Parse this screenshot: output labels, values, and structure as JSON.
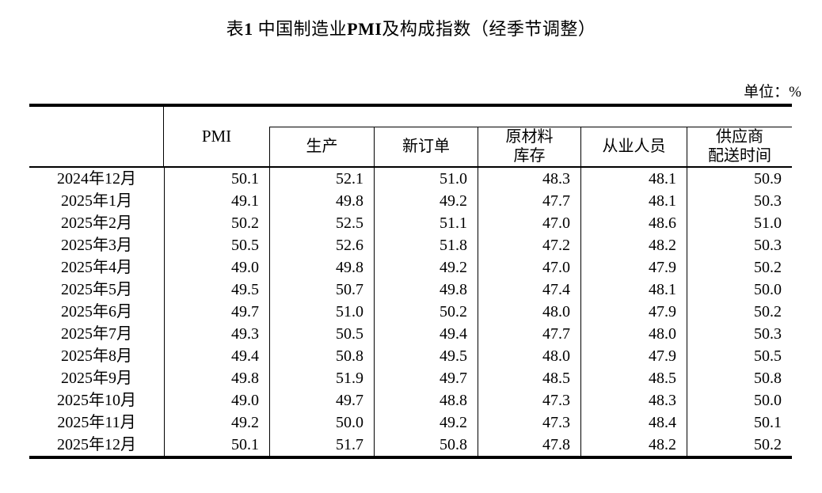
{
  "page": {
    "title_text": "表1 中国制造业PMI及构成指数（经季节调整）",
    "title_runs": [
      {
        "text": "表",
        "bold": false
      },
      {
        "text": "1",
        "bold": true
      },
      {
        "text": " 中国制造业",
        "bold": false
      },
      {
        "text": "PMI",
        "bold": true
      },
      {
        "text": "及构成指数（经季节调整）",
        "bold": false
      }
    ],
    "unit_label": "单位：%"
  },
  "table": {
    "columns": {
      "corner": "",
      "pmi": "PMI",
      "sub": [
        "生产",
        "新订单",
        "原材料\n库存",
        "从业人员",
        "供应商\n配送时间"
      ]
    },
    "rows": [
      {
        "period": "2024年12月",
        "values": [
          "50.1",
          "52.1",
          "51.0",
          "48.3",
          "48.1",
          "50.9"
        ]
      },
      {
        "period": "2025年1月",
        "values": [
          "49.1",
          "49.8",
          "49.2",
          "47.7",
          "48.1",
          "50.3"
        ]
      },
      {
        "period": "2025年2月",
        "values": [
          "50.2",
          "52.5",
          "51.1",
          "47.0",
          "48.6",
          "51.0"
        ]
      },
      {
        "period": "2025年3月",
        "values": [
          "50.5",
          "52.6",
          "51.8",
          "47.2",
          "48.2",
          "50.3"
        ]
      },
      {
        "period": "2025年4月",
        "values": [
          "49.0",
          "49.8",
          "49.2",
          "47.0",
          "47.9",
          "50.2"
        ]
      },
      {
        "period": "2025年5月",
        "values": [
          "49.5",
          "50.7",
          "49.8",
          "47.4",
          "48.1",
          "50.0"
        ]
      },
      {
        "period": "2025年6月",
        "values": [
          "49.7",
          "51.0",
          "50.2",
          "48.0",
          "47.9",
          "50.2"
        ]
      },
      {
        "period": "2025年7月",
        "values": [
          "49.3",
          "50.5",
          "49.4",
          "47.7",
          "48.0",
          "50.3"
        ]
      },
      {
        "period": "2025年8月",
        "values": [
          "49.4",
          "50.8",
          "49.5",
          "48.0",
          "47.9",
          "50.5"
        ]
      },
      {
        "period": "2025年9月",
        "values": [
          "49.8",
          "51.9",
          "49.7",
          "48.5",
          "48.5",
          "50.8"
        ]
      },
      {
        "period": "2025年10月",
        "values": [
          "49.0",
          "49.7",
          "48.8",
          "47.3",
          "48.3",
          "50.0"
        ]
      },
      {
        "period": "2025年11月",
        "values": [
          "49.2",
          "50.0",
          "49.2",
          "47.3",
          "48.4",
          "50.1"
        ]
      },
      {
        "period": "2025年12月",
        "values": [
          "50.1",
          "51.7",
          "50.8",
          "47.8",
          "48.2",
          "50.2"
        ]
      }
    ]
  },
  "colors": {
    "text": "#000000",
    "rule": "#000000",
    "background": "#ffffff"
  }
}
